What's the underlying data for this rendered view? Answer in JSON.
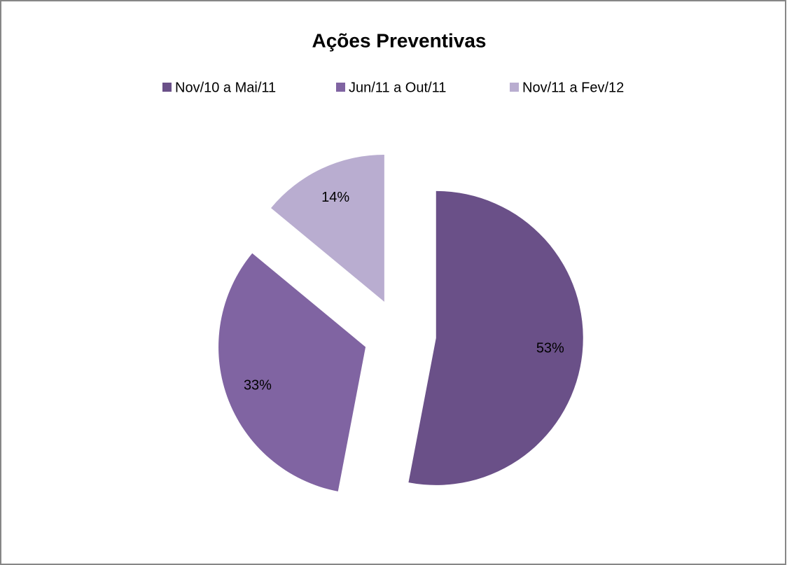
{
  "chart_data": {
    "type": "pie",
    "title": "Ações Preventivas",
    "categories": [
      "Nov/10 a Mai/11",
      "Jun/11 a Out/11",
      "Nov/11 a Fev/12"
    ],
    "values": [
      53,
      33,
      14
    ],
    "value_labels": [
      "53%",
      "33%",
      "14%"
    ],
    "colors": [
      "#6a5088",
      "#8064a2",
      "#b9add0"
    ],
    "legend": "top"
  }
}
